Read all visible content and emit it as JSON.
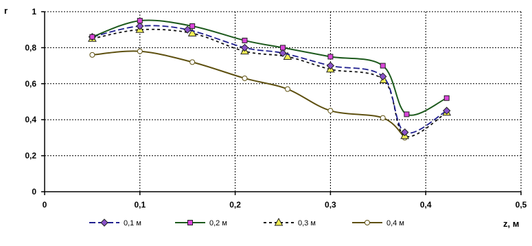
{
  "chart_data": {
    "type": "line",
    "ylabel": "r",
    "xlabel": "z, м",
    "xlim": [
      0,
      0.5
    ],
    "ylim": [
      0,
      1
    ],
    "x_ticks": [
      "0",
      "0,1",
      "0,2",
      "0,3",
      "0,4",
      "0,5"
    ],
    "y_ticks": [
      "0",
      "0,2",
      "0,4",
      "0,6",
      "0,8",
      "1"
    ],
    "grid": true,
    "legend_position": "bottom",
    "series": [
      {
        "name": "0,1 м",
        "color": "#1f1f8f",
        "line_style": "long-dash",
        "marker": "diamond",
        "marker_color": "#8a52c9",
        "x": [
          0.05,
          0.1,
          0.15,
          0.21,
          0.25,
          0.3,
          0.355,
          0.378,
          0.422
        ],
        "y": [
          0.86,
          0.92,
          0.9,
          0.8,
          0.77,
          0.7,
          0.64,
          0.33,
          0.45
        ]
      },
      {
        "name": "0,2 м",
        "color": "#1d5a1d",
        "line_style": "solid",
        "marker": "square",
        "marker_color": "#d946d9",
        "x": [
          0.05,
          0.1,
          0.155,
          0.21,
          0.25,
          0.3,
          0.355,
          0.38,
          0.422
        ],
        "y": [
          0.86,
          0.95,
          0.92,
          0.84,
          0.8,
          0.75,
          0.7,
          0.43,
          0.52
        ]
      },
      {
        "name": "0,3 м",
        "color": "#111111",
        "line_style": "short-dash",
        "marker": "triangle",
        "marker_color": "#f2ef55",
        "x": [
          0.05,
          0.1,
          0.155,
          0.21,
          0.255,
          0.3,
          0.356,
          0.378,
          0.422
        ],
        "y": [
          0.85,
          0.9,
          0.88,
          0.78,
          0.75,
          0.68,
          0.62,
          0.31,
          0.44
        ]
      },
      {
        "name": "0,4 м",
        "color": "#5e5010",
        "line_style": "solid",
        "marker": "circle",
        "marker_color": "#ffffff",
        "x": [
          0.05,
          0.1,
          0.155,
          0.21,
          0.255,
          0.3,
          0.355,
          0.378
        ],
        "y": [
          0.76,
          0.78,
          0.72,
          0.63,
          0.57,
          0.45,
          0.41,
          0.3
        ]
      }
    ]
  }
}
